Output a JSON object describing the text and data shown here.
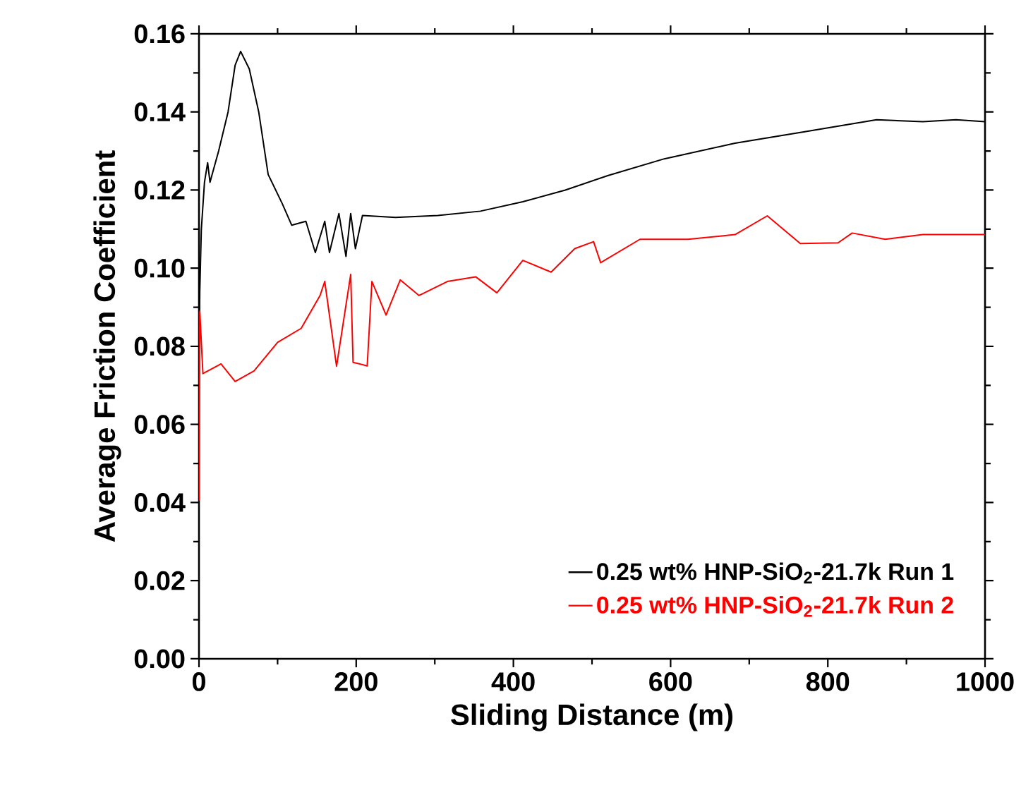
{
  "chart_data": {
    "type": "line",
    "xlabel": "Sliding Distance (m)",
    "ylabel": "Average Friction Coefficient",
    "xlim": [
      0,
      1000
    ],
    "ylim": [
      0,
      0.16
    ],
    "xticks": [
      0,
      200,
      400,
      600,
      800,
      1000
    ],
    "yticks": [
      {
        "value": 0,
        "label": "0.00"
      },
      {
        "value": 0.02,
        "label": "0.02"
      },
      {
        "value": 0.04,
        "label": "0.04"
      },
      {
        "value": 0.06,
        "label": "0.06"
      },
      {
        "value": 0.08,
        "label": "0.08"
      },
      {
        "value": 0.1,
        "label": "0.10"
      },
      {
        "value": 0.12,
        "label": "0.12"
      },
      {
        "value": 0.14,
        "label": "0.14"
      },
      {
        "value": 0.16,
        "label": "0.16"
      }
    ],
    "grid": false,
    "legend": "bottom right",
    "marker": "none",
    "line_style": "solid",
    "series": [
      {
        "name": "0.25 wt% HNP-SiO$_{2}$-21.7k Run 1",
        "color": "#000000",
        "x": [
          0,
          1,
          3,
          7,
          11,
          14,
          25,
          37,
          46,
          53,
          64,
          76,
          88,
          106,
          118,
          136,
          148,
          160,
          166,
          178,
          187,
          193,
          199,
          208,
          250,
          304,
          358,
          412,
          466,
          520,
          592,
          682,
          772,
          862,
          921,
          963,
          1000
        ],
        "values": [
          0.07,
          0.094,
          0.11,
          0.122,
          0.127,
          0.122,
          0.13,
          0.14,
          0.152,
          0.1555,
          0.151,
          0.14,
          0.124,
          0.1165,
          0.111,
          0.112,
          0.104,
          0.112,
          0.104,
          0.114,
          0.103,
          0.114,
          0.105,
          0.1135,
          0.113,
          0.1135,
          0.1146,
          0.117,
          0.12,
          0.1237,
          0.128,
          0.132,
          0.135,
          0.138,
          0.1375,
          0.138,
          0.1375
        ]
      },
      {
        "name": "0.25 wt% HNP-SiO$_{2}$-21.7k Run 2",
        "color": "#ff0000",
        "x": [
          0,
          1,
          5,
          28,
          46,
          70,
          100,
          130,
          154,
          160,
          175,
          193,
          196,
          214,
          220,
          238,
          256,
          280,
          316,
          352,
          379,
          412,
          448,
          478,
          502,
          511,
          561,
          622,
          682,
          723,
          765,
          813,
          831,
          873,
          921,
          1000
        ],
        "values": [
          0.0405,
          0.089,
          0.073,
          0.0755,
          0.071,
          0.0737,
          0.081,
          0.0846,
          0.093,
          0.0966,
          0.0749,
          0.0984,
          0.0759,
          0.075,
          0.0966,
          0.088,
          0.097,
          0.093,
          0.0966,
          0.0978,
          0.0937,
          0.102,
          0.099,
          0.105,
          0.1068,
          0.1014,
          0.1074,
          0.1074,
          0.1086,
          0.1134,
          0.1063,
          0.1065,
          0.109,
          0.1074,
          0.1086,
          0.1086
        ]
      }
    ]
  }
}
